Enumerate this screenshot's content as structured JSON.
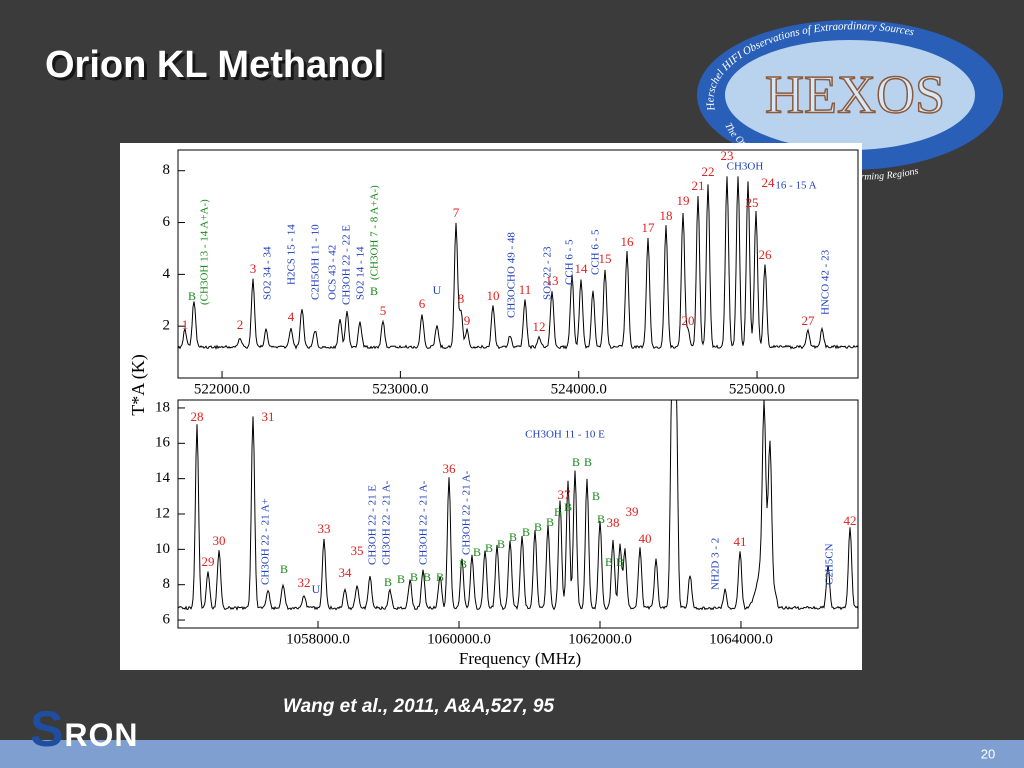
{
  "slide": {
    "title": "Orion KL  Methanol",
    "citation": "Wang et al., 2011, A&A,527, 95",
    "page_number": "20",
    "logo": "SRON",
    "badge": {
      "name": "HEXOS",
      "upper_ring": "Herschel HIFI Observations of Extraordinary Sources",
      "lower_ring": "The Orion and Sagittarius B2 Star-Forming Regions"
    }
  },
  "figure": {
    "y_label": "T*A (K)",
    "x_label": "Frequency (MHz)",
    "panels": [
      {
        "xlim": [
          521753,
          525566
        ],
        "ylim": [
          0,
          8.8
        ],
        "xticks": [
          {
            "value": 522000,
            "label": "522000.0"
          },
          {
            "value": 523000,
            "label": "523000.0"
          },
          {
            "value": 524000,
            "label": "524000.0"
          },
          {
            "value": 525000,
            "label": "525000.0"
          }
        ],
        "yticks": [
          2,
          4,
          6,
          8
        ],
        "peak_labels": [
          "1",
          "2",
          "3",
          "4",
          "5",
          "6",
          "7",
          "8",
          "9",
          "10",
          "11",
          "12",
          "13",
          "14",
          "15",
          "16",
          "17",
          "18",
          "19",
          "20",
          "21",
          "22",
          "23",
          "24",
          "25",
          "26",
          "27"
        ],
        "line_ids": [
          "(CH3OH 13 - 14 A+A-)",
          "SO2 34 - 34",
          "H2CS 15 - 14",
          "C2H5OH 11 - 10",
          "OCS 43 - 42",
          "CH3OH 22 - 22 E",
          "SO2 14 - 14",
          "(CH3OH 7 - 8 A+A-)",
          "CH3OCHO 49 - 48",
          "SO2 22 - 23",
          "CCH 6 - 5",
          "CCH 6 - 5",
          "HNCO 42 - 23",
          "CH3OH",
          "16 - 15 A"
        ],
        "markers": [
          "B",
          "B",
          "U"
        ]
      },
      {
        "xlim": [
          1056014,
          1065660
        ],
        "ylim": [
          5.55,
          18.45
        ],
        "xticks": [
          {
            "value": 1058000,
            "label": "1058000.0"
          },
          {
            "value": 1060000,
            "label": "1060000.0"
          },
          {
            "value": 1062000,
            "label": "1062000.0"
          },
          {
            "value": 1064000,
            "label": "1064000.0"
          }
        ],
        "yticks": [
          6,
          8,
          10,
          12,
          14,
          16,
          18
        ],
        "peak_labels": [
          "28",
          "29",
          "30",
          "31",
          "32",
          "33",
          "34",
          "35",
          "36",
          "37",
          "38",
          "39",
          "40",
          "41",
          "42"
        ],
        "line_ids": [
          "CH3OH 22 - 21 A+",
          "CH3OH 22 - 21 E",
          "CH3OH 22 - 21 A-",
          "CH3OH 22 - 21 A-",
          "CH3OH 22 - 21 A-",
          "CH3OH 11 - 10 E",
          "NH2D 3 - 2",
          "C2H5CN"
        ],
        "markers": [
          "U",
          "B",
          "B",
          "B",
          "B",
          "B",
          "B",
          "B",
          "B",
          "B",
          "B",
          "B",
          "B",
          "B",
          "B",
          "B",
          "B",
          "B",
          "B",
          "B",
          "B",
          "B",
          "B"
        ]
      }
    ]
  }
}
